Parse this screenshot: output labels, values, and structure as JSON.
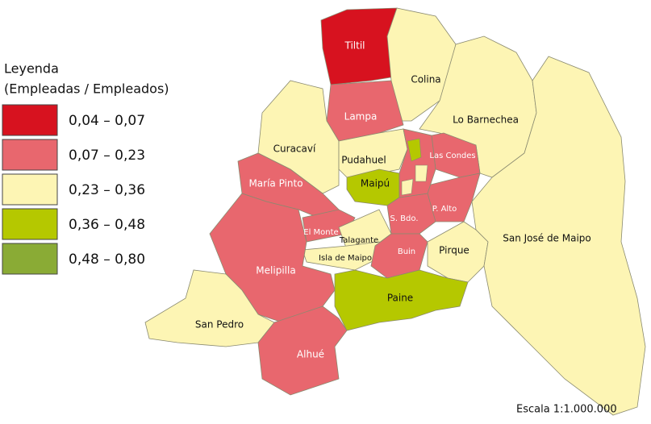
{
  "legend": {
    "title": "Leyenda",
    "subtitle": "(Empleadas / Empleados)",
    "classes": [
      {
        "label": "0,04 – 0,07",
        "color": "#d7121f"
      },
      {
        "label": "0,07 – 0,23",
        "color": "#e8676e"
      },
      {
        "label": "0,23 – 0,36",
        "color": "#fdf5b4"
      },
      {
        "label": "0,36 – 0,48",
        "color": "#b5c800"
      },
      {
        "label": "0,48 – 0,80",
        "color": "#8aab35"
      }
    ]
  },
  "regions": [
    {
      "name": "Tiltil",
      "color": "#d7121f"
    },
    {
      "name": "Colina",
      "color": "#fdf5b4"
    },
    {
      "name": "Lampa",
      "color": "#e8676e"
    },
    {
      "name": "Lo Barnechea",
      "color": "#fdf5b4"
    },
    {
      "name": "Curacaví",
      "color": "#fdf5b4"
    },
    {
      "name": "Pudahuel",
      "color": "#fdf5b4"
    },
    {
      "name": "Las Condes",
      "color": "#e8676e"
    },
    {
      "name": "María Pinto",
      "color": "#e8676e"
    },
    {
      "name": "Maipú",
      "color": "#b5c800"
    },
    {
      "name": "P. Alto",
      "color": "#e8676e"
    },
    {
      "name": "S. Bdo.",
      "color": "#e8676e"
    },
    {
      "name": "El Monte",
      "color": "#e8676e"
    },
    {
      "name": "Talagante",
      "color": "#fdf5b4"
    },
    {
      "name": "Isla de Maipo",
      "color": "#fdf5b4"
    },
    {
      "name": "Buin",
      "color": "#e8676e"
    },
    {
      "name": "Pirque",
      "color": "#fdf5b4"
    },
    {
      "name": "San José de Maipo",
      "color": "#fdf5b4"
    },
    {
      "name": "Melipilla",
      "color": "#e8676e"
    },
    {
      "name": "Paine",
      "color": "#b5c800"
    },
    {
      "name": "San Pedro",
      "color": "#fdf5b4"
    },
    {
      "name": "Alhué",
      "color": "#e8676e"
    }
  ],
  "scale": "Escala 1:1.000.000"
}
